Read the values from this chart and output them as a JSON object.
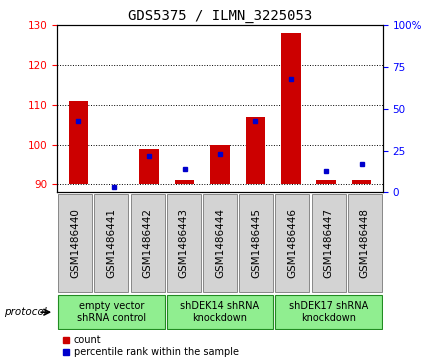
{
  "title": "GDS5375 / ILMN_3225053",
  "samples": [
    "GSM1486440",
    "GSM1486441",
    "GSM1486442",
    "GSM1486443",
    "GSM1486444",
    "GSM1486445",
    "GSM1486446",
    "GSM1486447",
    "GSM1486448"
  ],
  "count_values": [
    111,
    90,
    99,
    91,
    100,
    107,
    128,
    91,
    91
  ],
  "percentile_values": [
    43,
    3,
    22,
    14,
    23,
    43,
    68,
    13,
    17
  ],
  "count_base": 90,
  "ylim_left": [
    88,
    130
  ],
  "ylim_right": [
    0,
    100
  ],
  "yticks_left": [
    90,
    100,
    110,
    120,
    130
  ],
  "yticks_right": [
    0,
    25,
    50,
    75,
    100
  ],
  "bar_color": "#cc0000",
  "dot_color": "#0000cc",
  "groups": [
    {
      "label": "empty vector\nshRNA control",
      "start": 0,
      "end": 3
    },
    {
      "label": "shDEK14 shRNA\nknockdown",
      "start": 3,
      "end": 6
    },
    {
      "label": "shDEK17 shRNA\nknockdown",
      "start": 6,
      "end": 9
    }
  ],
  "legend_items": [
    {
      "label": "count",
      "color": "#cc0000"
    },
    {
      "label": "percentile rank within the sample",
      "color": "#0000cc"
    }
  ],
  "protocol_label": "protocol",
  "title_fontsize": 10,
  "tick_fontsize": 7.5,
  "label_fontsize": 7,
  "group_facecolor": "#90EE90",
  "group_edgecolor": "#228B22",
  "sample_box_facecolor": "#d3d3d3",
  "sample_box_edgecolor": "#888888"
}
